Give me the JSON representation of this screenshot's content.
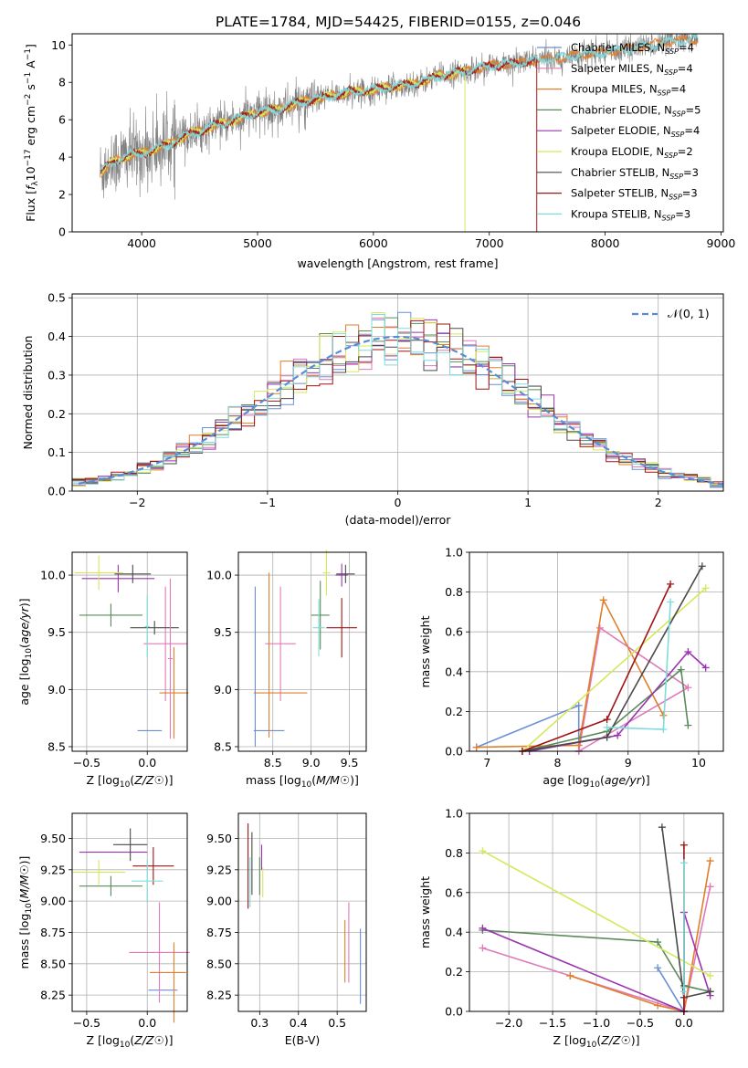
{
  "figure_title": "PLATE=1784, MJD=54425, FIBERID=0155, z=0.046",
  "colors": {
    "data": "#808080",
    "chabrier_miles": "#6a8fd8",
    "salpeter_miles": "#e07ab8",
    "kroupa_miles": "#e07f2a",
    "chabrier_elodie": "#5a8a5a",
    "salpeter_elodie": "#9b33b0",
    "kroupa_elodie": "#d6e85a",
    "chabrier_stelib": "#4a4a4a",
    "salpeter_stelib": "#a01515",
    "kroupa_stelib": "#7fdcdc",
    "normal": "#5b8bd6",
    "grid": "#b0b0b0"
  },
  "legend_spectrum": [
    {
      "pre": "Chabrier MILES, N",
      "sub": "SSP",
      "post": "=4",
      "color": "chabrier_miles"
    },
    {
      "pre": "Salpeter MILES, N",
      "sub": "SSP",
      "post": "=4",
      "color": "salpeter_miles"
    },
    {
      "pre": "Kroupa MILES, N",
      "sub": "SSP",
      "post": "=4",
      "color": "kroupa_miles"
    },
    {
      "pre": "Chabrier ELODIE, N",
      "sub": "SSP",
      "post": "=5",
      "color": "chabrier_elodie"
    },
    {
      "pre": "Salpeter ELODIE, N",
      "sub": "SSP",
      "post": "=4",
      "color": "salpeter_elodie"
    },
    {
      "pre": "Kroupa ELODIE, N",
      "sub": "SSP",
      "post": "=2",
      "color": "kroupa_elodie"
    },
    {
      "pre": "Chabrier STELIB, N",
      "sub": "SSP",
      "post": "=3",
      "color": "chabrier_stelib"
    },
    {
      "pre": "Salpeter STELIB, N",
      "sub": "SSP",
      "post": "=3",
      "color": "salpeter_stelib"
    },
    {
      "pre": "Kroupa STELIB, N",
      "sub": "SSP",
      "post": "=3",
      "color": "kroupa_stelib"
    }
  ],
  "legend_hist": {
    "label": "𝒩(0, 1)"
  },
  "chart_data": [
    {
      "id": "spectrum",
      "type": "line",
      "xlabel": "wavelength [Angstrom, rest frame]",
      "ylabel": "Flux [f_λ10^-17 erg cm^-2 s^-1 A^-1]",
      "ylabel_parts": {
        "a": "Flux [",
        "b": "f",
        "b_sub": "λ",
        "c": "10",
        "c_sup": "−17",
        "d": " erg cm",
        "d_sup": "−2",
        "e": " s",
        "e_sup": "−1",
        "f": " A",
        "f_sup": "−1",
        "g": "]"
      },
      "xlim": [
        3400,
        9020
      ],
      "ylim": [
        0,
        10.6
      ],
      "xticks": [
        4000,
        5000,
        6000,
        7000,
        8000,
        9000
      ],
      "yticks": [
        0,
        2,
        4,
        6,
        8,
        10
      ],
      "grid": false,
      "legend": "top-right",
      "data_range": [
        3640,
        8800
      ],
      "model_anchor_points": {
        "x": [
          3650,
          3700,
          3800,
          3900,
          4000,
          4200,
          4400,
          4600,
          4800,
          5000,
          5200,
          5400,
          5600,
          5800,
          6000,
          6200,
          6400,
          6600,
          6800,
          7000,
          7200,
          7400,
          7600,
          7800,
          8000,
          8200,
          8400,
          8600,
          8800
        ],
        "y": [
          3.2,
          3.5,
          3.9,
          4.1,
          4.2,
          4.6,
          5.2,
          5.6,
          6.0,
          6.4,
          6.6,
          7.0,
          7.2,
          7.5,
          7.6,
          7.8,
          8.0,
          8.4,
          8.6,
          8.9,
          9.0,
          9.2,
          9.3,
          9.5,
          9.6,
          9.8,
          10.0,
          10.2,
          10.3
        ]
      }
    },
    {
      "id": "residual-hist",
      "type": "histogram",
      "xlabel": "(data-model)/error",
      "ylabel": "Normed distribution",
      "xlim": [
        -2.5,
        2.5
      ],
      "ylim": [
        0,
        0.51
      ],
      "xticks": [
        -2,
        -1,
        0,
        1,
        2
      ],
      "yticks": [
        0.0,
        0.1,
        0.2,
        0.3,
        0.4,
        0.5
      ],
      "grid": true,
      "legend": "top-right",
      "bin_width": 0.1,
      "bin_start": -2.5,
      "normal_curve": {
        "mu": 0,
        "sigma": 1
      }
    },
    {
      "id": "age-vs-Z",
      "type": "errorbar",
      "xlabel": "Z [log10(Z/Z☉)]",
      "ylabel": "age  [log10(age/yr)]",
      "xlim": [
        -0.62,
        0.33
      ],
      "ylim": [
        8.46,
        10.2
      ],
      "xticks": [
        -0.5,
        0.0
      ],
      "yticks": [
        8.5,
        9.0,
        9.5,
        10.0
      ],
      "grid": true,
      "points": [
        {
          "x": 0.02,
          "y": 8.64,
          "xerr": 0.1,
          "yerr": 0.0,
          "color": "chabrier_miles"
        },
        {
          "x": 0.15,
          "y": 9.4,
          "xerr": 0.18,
          "yerr": 0.5,
          "color": "salpeter_miles"
        },
        {
          "x": 0.22,
          "y": 8.97,
          "xerr": 0.12,
          "yerr": 0.4,
          "color": "kroupa_miles"
        },
        {
          "x": -0.3,
          "y": 9.65,
          "xerr": 0.26,
          "yerr": 0.1,
          "color": "chabrier_elodie"
        },
        {
          "x": -0.24,
          "y": 9.97,
          "xerr": 0.3,
          "yerr": 0.12,
          "color": "salpeter_elodie"
        },
        {
          "x": -0.4,
          "y": 10.02,
          "xerr": 0.2,
          "yerr": 0.15,
          "color": "kroupa_elodie"
        },
        {
          "x": -0.12,
          "y": 10.01,
          "xerr": 0.15,
          "yerr": 0.08,
          "color": "chabrier_stelib"
        },
        {
          "x": 0.06,
          "y": 9.54,
          "xerr": 0.2,
          "yerr": 0.06,
          "color": "chabrier_stelib"
        },
        {
          "x": 0.0,
          "y": 9.55,
          "xerr": 0.02,
          "yerr": 0.27,
          "color": "kroupa_stelib"
        },
        {
          "x": 0.19,
          "y": 9.27,
          "xerr": 0.02,
          "yerr": 0.7,
          "color": "salpeter_miles"
        }
      ]
    },
    {
      "id": "age-vs-mass",
      "type": "errorbar",
      "xlabel": "mass [log10(M/M☉)]",
      "ylabel": "",
      "xlim": [
        8.05,
        9.72
      ],
      "ylim": [
        8.46,
        10.2
      ],
      "xticks": [
        8.5,
        9.0,
        9.5
      ],
      "yticks": [
        8.5,
        9.0,
        9.5,
        10.0
      ],
      "grid": true,
      "points": [
        {
          "x": 8.45,
          "y": 8.64,
          "xerr": 0.2,
          "yerr": 0.0,
          "color": "chabrier_miles"
        },
        {
          "x": 8.6,
          "y": 9.4,
          "xerr": 0.2,
          "yerr": 0.5,
          "color": "salpeter_miles"
        },
        {
          "x": 8.6,
          "y": 8.97,
          "xerr": 0.35,
          "yerr": 0.0,
          "color": "kroupa_miles"
        },
        {
          "x": 8.27,
          "y": 9.2,
          "xerr": 0.0,
          "yerr": 0.7,
          "color": "chabrier_miles"
        },
        {
          "x": 8.45,
          "y": 9.3,
          "xerr": 0.0,
          "yerr": 0.72,
          "color": "kroupa_miles"
        },
        {
          "x": 9.12,
          "y": 9.65,
          "xerr": 0.12,
          "yerr": 0.3,
          "color": "chabrier_elodie"
        },
        {
          "x": 9.4,
          "y": 10.0,
          "xerr": 0.08,
          "yerr": 0.1,
          "color": "salpeter_elodie"
        },
        {
          "x": 9.2,
          "y": 10.02,
          "xerr": 0.05,
          "yerr": 0.2,
          "color": "kroupa_elodie"
        },
        {
          "x": 9.45,
          "y": 10.01,
          "xerr": 0.12,
          "yerr": 0.08,
          "color": "chabrier_stelib"
        },
        {
          "x": 9.4,
          "y": 9.54,
          "xerr": 0.2,
          "yerr": 0.26,
          "color": "salpeter_stelib"
        },
        {
          "x": 9.1,
          "y": 9.54,
          "xerr": 0.08,
          "yerr": 0.25,
          "color": "kroupa_stelib"
        }
      ]
    },
    {
      "id": "mass-weight-vs-age",
      "type": "line",
      "xlabel": "age  [log10(age/yr)]",
      "ylabel": "mass weight",
      "xlim": [
        6.75,
        10.35
      ],
      "ylim": [
        0,
        1.0
      ],
      "xticks": [
        7,
        8,
        9,
        10
      ],
      "yticks": [
        0.0,
        0.2,
        0.4,
        0.6,
        0.8,
        1.0
      ],
      "grid": true,
      "series": [
        {
          "color": "chabrier_miles",
          "x": [
            6.85,
            8.3,
            8.3,
            8.3
          ],
          "y": [
            0.02,
            0.23,
            0.0,
            0.0
          ]
        },
        {
          "color": "salpeter_miles",
          "x": [
            8.3,
            8.6,
            9.85,
            8.3
          ],
          "y": [
            0.0,
            0.62,
            0.32,
            0.0
          ]
        },
        {
          "color": "kroupa_miles",
          "x": [
            6.85,
            8.3,
            8.65,
            9.5
          ],
          "y": [
            0.02,
            0.03,
            0.76,
            0.18
          ]
        },
        {
          "color": "chabrier_elodie",
          "x": [
            7.5,
            8.7,
            9.75,
            9.85
          ],
          "y": [
            0.0,
            0.1,
            0.41,
            0.13
          ]
        },
        {
          "color": "salpeter_elodie",
          "x": [
            7.6,
            8.85,
            9.85,
            10.1
          ],
          "y": [
            0.0,
            0.08,
            0.5,
            0.42
          ]
        },
        {
          "color": "kroupa_elodie",
          "x": [
            7.5,
            10.1
          ],
          "y": [
            0.0,
            0.82
          ]
        },
        {
          "color": "chabrier_stelib",
          "x": [
            7.5,
            8.7,
            10.05
          ],
          "y": [
            0.0,
            0.07,
            0.93
          ]
        },
        {
          "color": "salpeter_stelib",
          "x": [
            7.5,
            8.7,
            9.6
          ],
          "y": [
            0.0,
            0.16,
            0.84
          ]
        },
        {
          "color": "kroupa_stelib",
          "x": [
            8.7,
            9.5,
            9.6
          ],
          "y": [
            0.12,
            0.11,
            0.75
          ]
        }
      ]
    },
    {
      "id": "mass-vs-Z",
      "type": "errorbar",
      "xlabel": "Z [log10(Z/Z☉)]",
      "ylabel": "mass [log10(M/M☉)]",
      "xlim": [
        -0.62,
        0.33
      ],
      "ylim": [
        8.12,
        9.7
      ],
      "xticks": [
        -0.5,
        0.0
      ],
      "yticks": [
        8.25,
        8.5,
        8.75,
        9.0,
        9.25,
        9.5
      ],
      "grid": true,
      "points": [
        {
          "x": 0.13,
          "y": 8.29,
          "xerr": 0.12,
          "yerr": 0.0,
          "color": "chabrier_miles"
        },
        {
          "x": 0.1,
          "y": 8.59,
          "xerr": 0.25,
          "yerr": 0.4,
          "color": "salpeter_miles"
        },
        {
          "x": 0.17,
          "y": 8.43,
          "xerr": 0.15,
          "yerr": 0.0,
          "color": "kroupa_miles"
        },
        {
          "x": 0.22,
          "y": 8.35,
          "xerr": 0.0,
          "yerr": 0.32,
          "color": "kroupa_miles"
        },
        {
          "x": -0.3,
          "y": 9.12,
          "xerr": 0.26,
          "yerr": 0.08,
          "color": "chabrier_elodie"
        },
        {
          "x": -0.28,
          "y": 9.39,
          "xerr": 0.28,
          "yerr": 0.0,
          "color": "salpeter_elodie"
        },
        {
          "x": -0.4,
          "y": 9.23,
          "xerr": 0.22,
          "yerr": 0.1,
          "color": "kroupa_elodie"
        },
        {
          "x": -0.14,
          "y": 9.45,
          "xerr": 0.14,
          "yerr": 0.13,
          "color": "chabrier_stelib"
        },
        {
          "x": 0.05,
          "y": 9.28,
          "xerr": 0.17,
          "yerr": 0.15,
          "color": "salpeter_stelib"
        },
        {
          "x": 0.0,
          "y": 9.16,
          "xerr": 0.13,
          "yerr": 0.17,
          "color": "kroupa_stelib"
        }
      ]
    },
    {
      "id": "mass-vs-EBV",
      "type": "errorbar",
      "xlabel": "E(B-V)",
      "ylabel": "",
      "xlim": [
        0.245,
        0.575
      ],
      "ylim": [
        8.12,
        9.7
      ],
      "xticks": [
        0.3,
        0.4,
        0.5
      ],
      "yticks": [
        8.25,
        8.5,
        8.75,
        9.0,
        9.25,
        9.5
      ],
      "grid": true,
      "points": [
        {
          "x": 0.27,
          "y": 9.28,
          "xerr": 0.0,
          "yerr": 0.34,
          "color": "salpeter_stelib"
        },
        {
          "x": 0.275,
          "y": 9.15,
          "xerr": 0.0,
          "yerr": 0.2,
          "color": "kroupa_stelib"
        },
        {
          "x": 0.28,
          "y": 9.3,
          "xerr": 0.0,
          "yerr": 0.25,
          "color": "chabrier_stelib"
        },
        {
          "x": 0.3,
          "y": 9.2,
          "xerr": 0.0,
          "yerr": 0.15,
          "color": "chabrier_elodie"
        },
        {
          "x": 0.305,
          "y": 9.35,
          "xerr": 0.0,
          "yerr": 0.1,
          "color": "salpeter_elodie"
        },
        {
          "x": 0.308,
          "y": 9.15,
          "xerr": 0.0,
          "yerr": 0.12,
          "color": "kroupa_elodie"
        },
        {
          "x": 0.52,
          "y": 8.6,
          "xerr": 0.0,
          "yerr": 0.25,
          "color": "kroupa_miles"
        },
        {
          "x": 0.53,
          "y": 8.67,
          "xerr": 0.0,
          "yerr": 0.32,
          "color": "salpeter_miles"
        },
        {
          "x": 0.56,
          "y": 8.48,
          "xerr": 0.0,
          "yerr": 0.3,
          "color": "chabrier_miles"
        }
      ]
    },
    {
      "id": "mass-weight-vs-Z",
      "type": "line",
      "xlabel": "Z [log10(Z/Z☉)]",
      "ylabel": "mass weight",
      "xlim": [
        -2.45,
        0.45
      ],
      "ylim": [
        0,
        1.0
      ],
      "xticks": [
        -2.0,
        -1.5,
        -1.0,
        -0.5,
        0.0
      ],
      "yticks": [
        0.0,
        0.2,
        0.4,
        0.6,
        0.8,
        1.0
      ],
      "grid": true,
      "series": [
        {
          "color": "chabrier_miles",
          "x": [
            -0.3,
            0.0,
            0.0
          ],
          "y": [
            0.22,
            0.0,
            0.5
          ]
        },
        {
          "color": "salpeter_miles",
          "x": [
            -2.3,
            -1.3,
            0.0,
            0.3
          ],
          "y": [
            0.32,
            0.18,
            0.0,
            0.63
          ]
        },
        {
          "color": "kroupa_miles",
          "x": [
            -1.3,
            -0.3,
            0.0,
            0.3
          ],
          "y": [
            0.18,
            0.03,
            0.0,
            0.76
          ]
        },
        {
          "color": "chabrier_elodie",
          "x": [
            -2.3,
            -0.3,
            0.0,
            0.3
          ],
          "y": [
            0.41,
            0.35,
            0.13,
            0.1
          ]
        },
        {
          "color": "salpeter_elodie",
          "x": [
            -2.3,
            0.0,
            0.0,
            0.3
          ],
          "y": [
            0.42,
            0.0,
            0.5,
            0.08
          ]
        },
        {
          "color": "kroupa_elodie",
          "x": [
            -2.3,
            0.3
          ],
          "y": [
            0.81,
            0.18
          ]
        },
        {
          "color": "chabrier_stelib",
          "x": [
            -0.25,
            0.0,
            0.3
          ],
          "y": [
            0.93,
            0.07,
            0.1
          ]
        },
        {
          "color": "salpeter_stelib",
          "x": [
            0.0,
            0.0
          ],
          "y": [
            0.84,
            0.0
          ]
        },
        {
          "color": "kroupa_stelib",
          "x": [
            0.0,
            0.0,
            0.0
          ],
          "y": [
            0.75,
            0.12,
            0.1
          ]
        }
      ]
    }
  ]
}
